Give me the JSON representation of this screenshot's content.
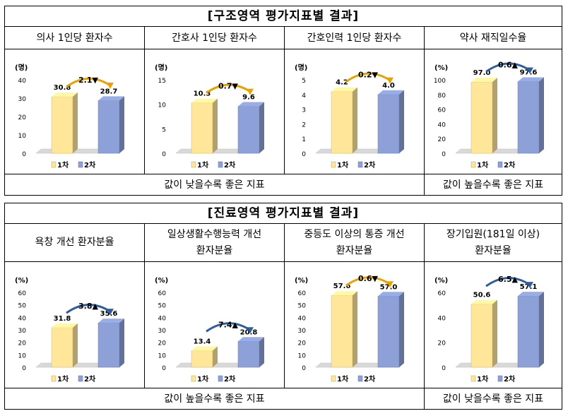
{
  "tables": [
    {
      "title": "[구조영역 평가지표별 결과]",
      "footer_left": "값이 낮을수록 좋은 지표",
      "footer_right": "값이 높을수록 좋은 지표"
    },
    {
      "title": "[진료영역 평가지표별 결과]",
      "footer_left": "값이 높을수록 좋은 지표",
      "footer_right": "값이 낮을수록 좋은 지표"
    }
  ],
  "legend": [
    "1차",
    "2차"
  ],
  "colors": {
    "series1": "#FFE699",
    "series2": "#8EA0D8",
    "arrow": "#E8A200",
    "arrow_blue": "#2E5E9E"
  },
  "chart_data": [
    {
      "type": "bar",
      "title_lines": [
        "의사 1인당 환자수"
      ],
      "unit": "(명)",
      "categories": [
        "1차",
        "2차"
      ],
      "values": [
        30.8,
        28.7
      ],
      "labels": [
        "30.8",
        "28.7"
      ],
      "ylim": [
        0,
        40
      ],
      "ticks": [
        "0",
        "10",
        "20",
        "30",
        "40"
      ],
      "change": "2.1▼",
      "arrow": "orange"
    },
    {
      "type": "bar",
      "title_lines": [
        "간호사 1인당 환자수"
      ],
      "unit": "(명)",
      "categories": [
        "1차",
        "2차"
      ],
      "values": [
        10.3,
        9.6
      ],
      "labels": [
        "10.3",
        "9.6"
      ],
      "ylim": [
        0,
        15
      ],
      "ticks": [
        "0",
        "5",
        "10",
        "15"
      ],
      "change": "0.7▼",
      "arrow": "orange"
    },
    {
      "type": "bar",
      "title_lines": [
        "간호인력 1인당 환자수"
      ],
      "unit": "(명)",
      "categories": [
        "1차",
        "2차"
      ],
      "values": [
        4.2,
        4.0
      ],
      "labels": [
        "4.2",
        "4.0"
      ],
      "ylim": [
        0,
        5
      ],
      "ticks": [
        "0",
        "1",
        "2",
        "3",
        "4",
        "5"
      ],
      "change": "0.2▼",
      "arrow": "orange"
    },
    {
      "type": "bar",
      "title_lines": [
        "약사 재직일수율"
      ],
      "unit": "(%)",
      "categories": [
        "1차",
        "2차"
      ],
      "values": [
        97.0,
        97.6
      ],
      "labels": [
        "97.0",
        "97.6"
      ],
      "ylim": [
        0,
        100
      ],
      "ticks": [
        "0",
        "20",
        "40",
        "60",
        "80",
        "100"
      ],
      "change": "0.6▲",
      "arrow": "blue"
    },
    {
      "type": "bar",
      "title_lines": [
        "욕창 개선 환자분율"
      ],
      "unit": "(%)",
      "categories": [
        "1차",
        "2차"
      ],
      "values": [
        31.8,
        35.6
      ],
      "labels": [
        "31.8",
        "35.6"
      ],
      "ylim": [
        0,
        60
      ],
      "ticks": [
        "0",
        "10",
        "20",
        "30",
        "40",
        "50",
        "60"
      ],
      "change": "3.8▲",
      "arrow": "blue"
    },
    {
      "type": "bar",
      "title_lines": [
        "일상생활수행능력 개선",
        "환자분율"
      ],
      "unit": "(%)",
      "categories": [
        "1차",
        "2차"
      ],
      "values": [
        13.4,
        20.8
      ],
      "labels": [
        "13.4",
        "20.8"
      ],
      "ylim": [
        0,
        60
      ],
      "ticks": [
        "0",
        "10",
        "20",
        "30",
        "40",
        "50",
        "60"
      ],
      "change": "7.4▲",
      "arrow": "blue"
    },
    {
      "type": "bar",
      "title_lines": [
        "중등도 이상의 통증 개선",
        "환자분율"
      ],
      "unit": "(%)",
      "categories": [
        "1차",
        "2차"
      ],
      "values": [
        57.6,
        57.0
      ],
      "labels": [
        "57.6",
        "57.0"
      ],
      "ylim": [
        0,
        60
      ],
      "ticks": [
        "0",
        "10",
        "20",
        "30",
        "40",
        "50",
        "60"
      ],
      "change": "0.6▼",
      "arrow": "orange"
    },
    {
      "type": "bar",
      "title_lines": [
        "장기입원(181일 이상)",
        "환자분율"
      ],
      "unit": "(%)",
      "categories": [
        "1차",
        "2차"
      ],
      "values": [
        50.6,
        57.1
      ],
      "labels": [
        "50.6",
        "57.1"
      ],
      "ylim": [
        0,
        60
      ],
      "ticks": [
        "0",
        "20",
        "40",
        "60"
      ],
      "change": "6.5▲",
      "arrow": "blue"
    }
  ]
}
